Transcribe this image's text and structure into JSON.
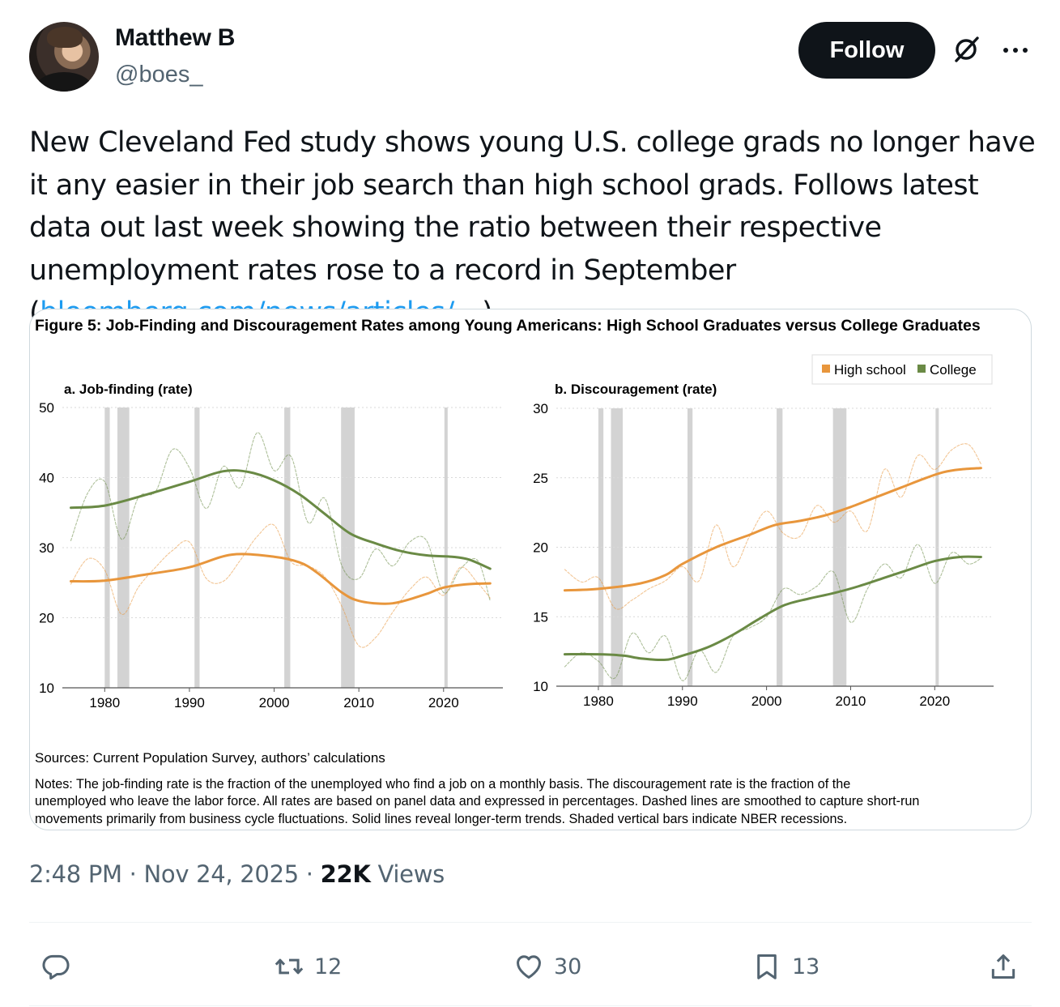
{
  "author": {
    "display_name": "Matthew B",
    "handle": "@boes_",
    "follow_label": "Follow"
  },
  "icons": {
    "grok": "grok-icon",
    "more": "more-icon",
    "reply": "reply-icon",
    "retweet": "retweet-icon",
    "like": "heart-icon",
    "bookmark": "bookmark-icon",
    "share": "share-icon"
  },
  "tweet": {
    "text": "New Cleveland Fed study shows young U.S. college grads no longer have it any easier in their job search than high school grads. Follows latest data out last week showing the ratio between their respective unemployment rates rose to a record in September (",
    "link": "bloomberg.com/news/articles/…",
    "text_end": ")"
  },
  "figure": {
    "title": "Figure 5: Job-Finding and Discouragement Rates among Young Americans: High School Graduates versus College Graduates",
    "sources": "Sources: Current Population Survey, authors’ calculations",
    "notes_line1": "Notes: The job-finding rate is the fraction of the unemployed who find a job on a monthly basis. The discouragement rate is the fraction of the",
    "notes_line2": "unemployed who leave the labor force. All rates are based on panel data and expressed in percentages. Dashed lines are smoothed to capture short-run",
    "notes_line3": "movements primarily from business cycle fluctuations. Solid lines reveal longer-term trends. Shaded vertical bars indicate NBER recessions.",
    "colors": {
      "high_school": "#e8963c",
      "college": "#6a8a45",
      "recession": "#d3d3d3"
    }
  },
  "chart_data": [
    {
      "type": "line",
      "title": "a. Job-finding (rate)",
      "xlabel": "",
      "ylabel": "",
      "xlim": [
        1975,
        2027
      ],
      "ylim": [
        10,
        50
      ],
      "yticks": [
        10,
        20,
        30,
        40,
        50
      ],
      "xticks": [
        1980,
        1990,
        2000,
        2010,
        2020
      ],
      "recessions": [
        [
          1980.0,
          1980.6
        ],
        [
          1981.5,
          1982.9
        ],
        [
          1990.6,
          1991.2
        ],
        [
          2001.2,
          2001.9
        ],
        [
          2007.9,
          2009.5
        ],
        [
          2020.1,
          2020.4
        ]
      ],
      "series": [
        {
          "name": "High school",
          "style": "solid",
          "x": [
            1976,
            1980,
            1985,
            1990,
            1995,
            2000,
            2003,
            2005,
            2008,
            2010,
            2013,
            2015,
            2018,
            2020,
            2023,
            2025.5
          ],
          "y": [
            25.2,
            25.3,
            26.2,
            27.2,
            29.0,
            28.7,
            27.9,
            26.5,
            23.6,
            22.4,
            22.0,
            22.3,
            23.4,
            24.3,
            24.8,
            24.9
          ]
        },
        {
          "name": "College",
          "style": "solid",
          "x": [
            1976,
            1980,
            1985,
            1990,
            1994,
            1997,
            2000,
            2003,
            2006,
            2009,
            2012,
            2015,
            2018,
            2021,
            2023,
            2025.5
          ],
          "y": [
            35.7,
            36.0,
            37.6,
            39.4,
            40.9,
            40.8,
            39.6,
            37.6,
            34.8,
            32.0,
            30.6,
            29.5,
            28.9,
            28.7,
            28.3,
            27.0
          ]
        },
        {
          "name": "High school",
          "style": "dashed",
          "x": [
            1976,
            1978,
            1980,
            1982,
            1984,
            1986,
            1988,
            1990,
            1992,
            1994,
            1996,
            1998,
            2000,
            2002,
            2004,
            2006,
            2008,
            2010,
            2012,
            2014,
            2016,
            2018,
            2020,
            2022,
            2024,
            2025.5
          ],
          "y": [
            24.8,
            28.4,
            26.8,
            20.5,
            24.4,
            27.2,
            29.6,
            30.8,
            25.6,
            25.2,
            28.2,
            31.6,
            33.2,
            28.0,
            27.4,
            25.8,
            21.6,
            16.0,
            17.2,
            20.8,
            24.0,
            25.8,
            23.2,
            27.2,
            25.0,
            22.8
          ]
        },
        {
          "name": "College",
          "style": "dashed",
          "x": [
            1976,
            1978,
            1980,
            1982,
            1984,
            1986,
            1988,
            1990,
            1992,
            1994,
            1996,
            1998,
            2000,
            2002,
            2004,
            2006,
            2008,
            2010,
            2012,
            2014,
            2016,
            2018,
            2020,
            2022,
            2024,
            2025.5
          ],
          "y": [
            31.0,
            37.8,
            39.4,
            31.2,
            37.2,
            38.0,
            44.0,
            41.4,
            35.6,
            41.6,
            38.6,
            46.4,
            41.0,
            43.0,
            33.6,
            37.0,
            27.4,
            25.6,
            29.8,
            27.4,
            30.8,
            31.0,
            23.6,
            27.0,
            28.2,
            22.4
          ]
        }
      ]
    },
    {
      "type": "line",
      "title": "b. Discouragement (rate)",
      "xlabel": "",
      "ylabel": "",
      "xlim": [
        1975,
        2027
      ],
      "ylim": [
        10,
        30
      ],
      "yticks": [
        10,
        15,
        20,
        25,
        30
      ],
      "xticks": [
        1980,
        1990,
        2000,
        2010,
        2020
      ],
      "legend": {
        "position": "top-right",
        "entries": [
          "High school",
          "College"
        ]
      },
      "recessions": [
        [
          1980.0,
          1980.6
        ],
        [
          1981.5,
          1982.9
        ],
        [
          1990.6,
          1991.2
        ],
        [
          2001.2,
          2001.9
        ],
        [
          2007.9,
          2009.5
        ],
        [
          2020.1,
          2020.4
        ]
      ],
      "series": [
        {
          "name": "High school",
          "style": "solid",
          "x": [
            1976,
            1980,
            1985,
            1988,
            1990,
            1994,
            1998,
            2001,
            2004,
            2007,
            2010,
            2013,
            2016,
            2019,
            2021,
            2023,
            2025.5
          ],
          "y": [
            16.9,
            17.0,
            17.4,
            18.0,
            18.8,
            20.0,
            20.9,
            21.6,
            21.9,
            22.3,
            22.9,
            23.6,
            24.3,
            25.0,
            25.4,
            25.6,
            25.7
          ]
        },
        {
          "name": "College",
          "style": "solid",
          "x": [
            1976,
            1980,
            1983,
            1985,
            1988,
            1990,
            1993,
            1996,
            1999,
            2002,
            2005,
            2008,
            2011,
            2014,
            2017,
            2020,
            2023,
            2025.5
          ],
          "y": [
            12.3,
            12.3,
            12.2,
            12.0,
            11.9,
            12.2,
            12.8,
            13.7,
            14.8,
            15.8,
            16.3,
            16.7,
            17.2,
            17.8,
            18.4,
            19.0,
            19.3,
            19.3
          ]
        },
        {
          "name": "High school",
          "style": "dashed",
          "x": [
            1976,
            1978,
            1980,
            1982,
            1984,
            1986,
            1988,
            1990,
            1992,
            1994,
            1996,
            1998,
            2000,
            2002,
            2004,
            2006,
            2008,
            2010,
            2012,
            2014,
            2016,
            2018,
            2020,
            2022,
            2024,
            2025.5
          ],
          "y": [
            18.4,
            17.5,
            17.8,
            15.6,
            16.2,
            17.0,
            17.6,
            18.6,
            17.6,
            21.6,
            18.6,
            20.8,
            22.6,
            21.0,
            20.8,
            23.0,
            21.8,
            22.6,
            21.2,
            25.6,
            23.6,
            26.6,
            25.6,
            27.0,
            27.4,
            26.0
          ]
        },
        {
          "name": "College",
          "style": "dashed",
          "x": [
            1976,
            1978,
            1980,
            1982,
            1984,
            1986,
            1988,
            1990,
            1992,
            1994,
            1996,
            1998,
            2000,
            2002,
            2004,
            2006,
            2008,
            2010,
            2012,
            2014,
            2016,
            2018,
            2020,
            2022,
            2024,
            2025.5
          ],
          "y": [
            11.4,
            12.4,
            11.8,
            10.6,
            13.8,
            12.4,
            13.6,
            10.4,
            12.6,
            11.0,
            13.6,
            14.2,
            15.0,
            17.0,
            16.6,
            17.2,
            18.2,
            14.6,
            17.0,
            18.8,
            17.8,
            20.2,
            17.4,
            19.6,
            18.8,
            19.2
          ]
        }
      ]
    }
  ],
  "meta": {
    "time": "2:48 PM",
    "separator": " · ",
    "date": "Nov 24, 2025",
    "views_count": "22K",
    "views_label": " Views"
  },
  "actions": {
    "reply_count": "",
    "retweet_count": "12",
    "like_count": "30",
    "bookmark_count": "13"
  }
}
